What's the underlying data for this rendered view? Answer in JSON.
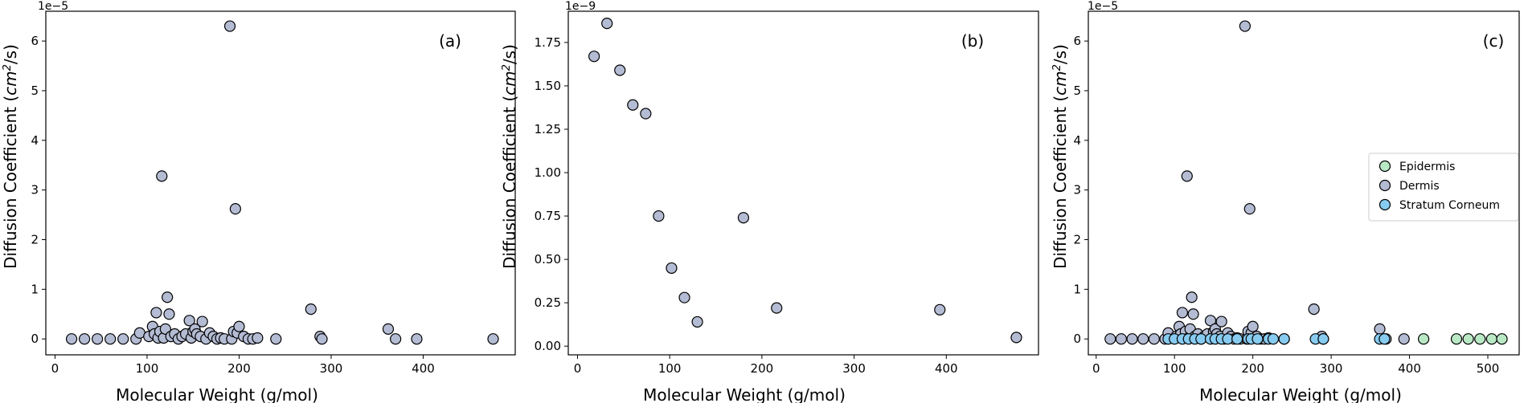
{
  "figure": {
    "colors": {
      "epidermis": "#b9e8c5",
      "dermis": "#b4bcd4",
      "stratum_corneum": "#87cbf0",
      "marker_edge": "#000000"
    }
  },
  "chart_data": [
    {
      "type": "scatter",
      "panel_label": "(a)",
      "offset_text": "1e−5",
      "xlabel": "Molecular Weight (g/mol)",
      "ylabel_main": "Diffusion Coefficient (",
      "ylabel_unit": "cm",
      "ylabel_power": "2",
      "ylabel_tail": "/s)",
      "xlim": [
        -10,
        500
      ],
      "ylim": [
        -0.32,
        6.6
      ],
      "xticks": [
        0,
        100,
        200,
        300,
        400
      ],
      "yticks": [
        0,
        1,
        2,
        3,
        4,
        5,
        6
      ],
      "ytick_labels": [
        "0",
        "1",
        "2",
        "3",
        "4",
        "5",
        "6"
      ],
      "legend": false,
      "series": [
        {
          "color": "#b4bcd4",
          "x": [
            18,
            32,
            46,
            60,
            74,
            88,
            92,
            102,
            106,
            108,
            110,
            112,
            114,
            116,
            118,
            120,
            122,
            124,
            126,
            130,
            134,
            138,
            142,
            146,
            148,
            150,
            152,
            154,
            158,
            160,
            164,
            168,
            172,
            176,
            180,
            184,
            190,
            192,
            194,
            196,
            198,
            200,
            205,
            210,
            215,
            220,
            240,
            278,
            288,
            290,
            362,
            370,
            393,
            476
          ],
          "y": [
            0,
            0,
            0,
            0,
            0,
            0,
            0.12,
            0.05,
            0.25,
            0.1,
            0.53,
            0.02,
            0.15,
            3.28,
            0.02,
            0.2,
            0.84,
            0.5,
            0.05,
            0.1,
            0,
            0.05,
            0.1,
            0.37,
            0.02,
            0.15,
            0.2,
            0.1,
            0.05,
            0.35,
            0,
            0.12,
            0.05,
            0,
            0.02,
            0,
            6.3,
            0,
            0.15,
            2.62,
            0.12,
            0.25,
            0.05,
            0,
            0,
            0.02,
            0,
            0.6,
            0.05,
            0,
            0.2,
            0,
            0,
            0
          ]
        }
      ]
    },
    {
      "type": "scatter",
      "panel_label": "(b)",
      "offset_text": "1e−9",
      "xlabel": "Molecular Weight (g/mol)",
      "ylabel_main": "Diffusion Coefficient (",
      "ylabel_unit": "cm",
      "ylabel_power": "2",
      "ylabel_tail": "/s)",
      "xlim": [
        -10,
        500
      ],
      "ylim": [
        -0.05,
        1.93
      ],
      "xticks": [
        0,
        100,
        200,
        300,
        400
      ],
      "yticks": [
        0,
        0.25,
        0.5,
        0.75,
        1,
        1.25,
        1.5,
        1.75
      ],
      "ytick_labels": [
        "0.00",
        "0.25",
        "0.50",
        "0.75",
        "1.00",
        "1.25",
        "1.50",
        "1.75"
      ],
      "legend": false,
      "series": [
        {
          "color": "#b4bcd4",
          "x": [
            18,
            32,
            46,
            60,
            74,
            88,
            102,
            116,
            130,
            180,
            216,
            393,
            476
          ],
          "y": [
            1.67,
            1.86,
            1.59,
            1.39,
            1.34,
            0.75,
            0.45,
            0.28,
            0.14,
            0.74,
            0.22,
            0.21,
            0.05
          ]
        }
      ]
    },
    {
      "type": "scatter",
      "panel_label": "(c)",
      "offset_text": "1e−5",
      "xlabel": "Molecular Weight (g/mol)",
      "ylabel_main": "Diffusion Coefficient (",
      "ylabel_unit": "cm",
      "ylabel_power": "2",
      "ylabel_tail": "/s)",
      "xlim": [
        -10,
        540
      ],
      "ylim": [
        -0.32,
        6.6
      ],
      "xticks": [
        0,
        100,
        200,
        300,
        400,
        500
      ],
      "yticks": [
        0,
        1,
        2,
        3,
        4,
        5,
        6
      ],
      "ytick_labels": [
        "0",
        "1",
        "2",
        "3",
        "4",
        "5",
        "6"
      ],
      "legend": true,
      "legend_position": "center-right",
      "series": [
        {
          "name": "Epidermis",
          "color": "#b9e8c5",
          "x": [
            418,
            460,
            475,
            490,
            505,
            518
          ],
          "y": [
            0,
            0,
            0,
            0,
            0,
            0
          ]
        },
        {
          "name": "Dermis",
          "color": "#b4bcd4",
          "x": [
            18,
            32,
            46,
            60,
            74,
            88,
            92,
            102,
            106,
            108,
            110,
            112,
            114,
            116,
            118,
            120,
            122,
            124,
            126,
            130,
            134,
            138,
            142,
            146,
            148,
            150,
            152,
            154,
            158,
            160,
            164,
            168,
            172,
            176,
            180,
            184,
            190,
            192,
            194,
            196,
            198,
            200,
            205,
            210,
            215,
            220,
            240,
            278,
            288,
            290,
            362,
            370,
            393
          ],
          "y": [
            0,
            0,
            0,
            0,
            0,
            0,
            0.12,
            0.05,
            0.25,
            0.1,
            0.53,
            0.02,
            0.15,
            3.28,
            0.02,
            0.2,
            0.84,
            0.5,
            0.05,
            0.1,
            0,
            0.05,
            0.1,
            0.37,
            0.02,
            0.15,
            0.2,
            0.1,
            0.05,
            0.35,
            0,
            0.12,
            0.05,
            0,
            0.02,
            0,
            6.3,
            0,
            0.15,
            2.62,
            0.12,
            0.25,
            0.05,
            0,
            0,
            0.02,
            0,
            0.6,
            0.05,
            0,
            0.2,
            0,
            0
          ]
        },
        {
          "name": "Stratum Corneum",
          "color": "#87cbf0",
          "x": [
            92,
            100,
            110,
            118,
            126,
            134,
            146,
            152,
            160,
            168,
            180,
            194,
            198,
            206,
            220,
            226,
            240,
            280,
            290,
            362,
            368
          ],
          "y": [
            0,
            0,
            0,
            0,
            0,
            0,
            0,
            0,
            0,
            0,
            0,
            0,
            0,
            0,
            0,
            0,
            0,
            0,
            0,
            0,
            0
          ]
        }
      ]
    }
  ]
}
